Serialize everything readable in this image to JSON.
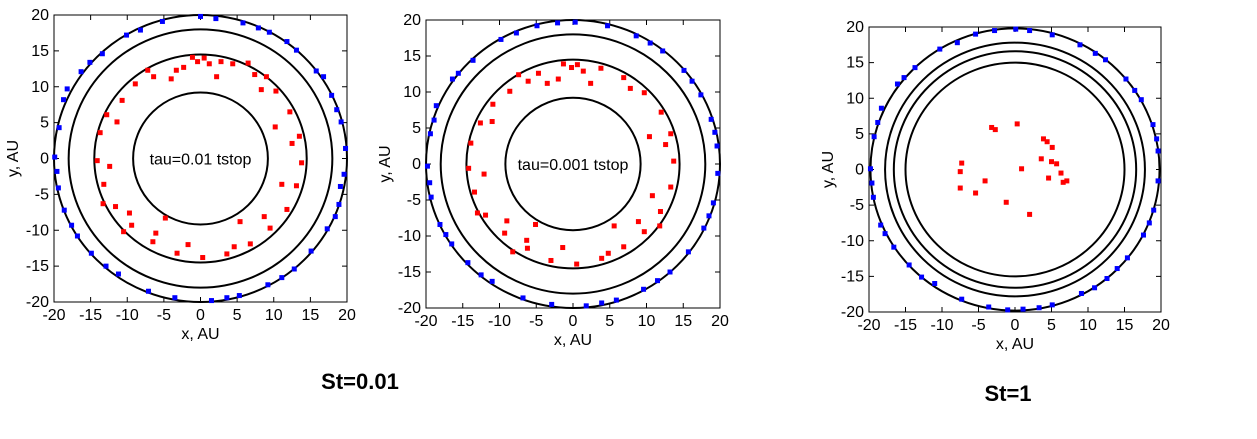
{
  "figure": {
    "captions": [
      "St=0.01",
      "St=1"
    ]
  },
  "colors": {
    "gas_particles": "#0000ff",
    "dust_particles": "#ff0000",
    "rings": "#000000"
  },
  "chart_data": [
    {
      "type": "scatter",
      "title": "",
      "annotation": "tau=0.01 tstop",
      "xlabel": "x, AU",
      "ylabel": "y, AU",
      "xlim": [
        -20,
        20
      ],
      "ylim": [
        -20,
        20
      ],
      "xticks": [
        -20,
        -15,
        -10,
        -5,
        0,
        5,
        10,
        15,
        20
      ],
      "yticks": [
        -20,
        -15,
        -10,
        -5,
        0,
        5,
        10,
        15,
        20
      ],
      "circles_radius": [
        9.2,
        14.5,
        18,
        20
      ],
      "series": [
        {
          "color": "blue",
          "points": [
            [
              0.0,
              19.8
            ],
            [
              -5.2,
              19.1
            ],
            [
              -10.1,
              17.2
            ],
            [
              -13.4,
              14.6
            ],
            [
              -16.3,
              12.1
            ],
            [
              -18.7,
              8.2
            ],
            [
              -19.3,
              4.3
            ],
            [
              -19.9,
              0.2
            ],
            [
              -19.4,
              -4.1
            ],
            [
              -18.6,
              -7.2
            ],
            [
              -16.8,
              -10.8
            ],
            [
              -14.9,
              -13.2
            ],
            [
              -11.2,
              -16.1
            ],
            [
              -7.1,
              -18.5
            ],
            [
              -3.5,
              -19.4
            ],
            [
              1.5,
              -19.8
            ],
            [
              5.3,
              -19.1
            ],
            [
              9.2,
              -17.6
            ],
            [
              12.8,
              -15.4
            ],
            [
              15.1,
              -12.9
            ],
            [
              17.3,
              -9.8
            ],
            [
              18.9,
              -6.4
            ],
            [
              19.6,
              -2.2
            ],
            [
              19.8,
              1.4
            ],
            [
              19.2,
              5.1
            ],
            [
              17.9,
              8.8
            ],
            [
              15.8,
              12.2
            ],
            [
              13.1,
              15.1
            ],
            [
              9.4,
              17.6
            ],
            [
              5.8,
              18.9
            ],
            [
              2.1,
              19.5
            ],
            [
              -8.2,
              17.9
            ],
            [
              -15.1,
              13.4
            ],
            [
              -18.2,
              9.7
            ],
            [
              -19.6,
              -1.8
            ],
            [
              -17.6,
              -9.3
            ],
            [
              -12.9,
              -15.0
            ],
            [
              3.6,
              -19.4
            ],
            [
              11.1,
              -16.6
            ],
            [
              18.4,
              -8.1
            ],
            [
              19.1,
              -3.9
            ],
            [
              18.6,
              6.8
            ],
            [
              16.8,
              11.4
            ],
            [
              11.8,
              16.3
            ],
            [
              7.9,
              18.2
            ]
          ]
        },
        {
          "color": "red",
          "points": [
            [
              -1.1,
              14.1
            ],
            [
              -0.4,
              13.5
            ],
            [
              0.5,
              14.0
            ],
            [
              1.2,
              13.2
            ],
            [
              2.8,
              13.5
            ],
            [
              -3.3,
              12.3
            ],
            [
              -6.4,
              11.4
            ],
            [
              -8.9,
              10.4
            ],
            [
              -10.7,
              8.1
            ],
            [
              -12.8,
              6.1
            ],
            [
              -13.7,
              3.6
            ],
            [
              -14.1,
              -0.3
            ],
            [
              -13.2,
              -3.6
            ],
            [
              -11.6,
              -6.7
            ],
            [
              -9.4,
              -9.3
            ],
            [
              -6.5,
              -11.6
            ],
            [
              -3.2,
              -13.2
            ],
            [
              0.3,
              -13.8
            ],
            [
              3.6,
              -13.3
            ],
            [
              6.8,
              -11.9
            ],
            [
              9.5,
              -9.7
            ],
            [
              11.8,
              -7.1
            ],
            [
              13.1,
              -3.8
            ],
            [
              13.8,
              -0.6
            ],
            [
              13.5,
              3.1
            ],
            [
              12.2,
              6.5
            ],
            [
              10.3,
              9.4
            ],
            [
              7.4,
              11.7
            ],
            [
              4.4,
              13.2
            ],
            [
              -2.3,
              12.7
            ],
            [
              -9.7,
              -7.6
            ],
            [
              -4.8,
              -8.3
            ],
            [
              5.4,
              -8.8
            ],
            [
              8.7,
              -8.1
            ],
            [
              -12.4,
              -1.1
            ],
            [
              12.5,
              2.1
            ],
            [
              11.1,
              -3.6
            ],
            [
              -11.4,
              5.1
            ],
            [
              8.3,
              9.6
            ],
            [
              -7.2,
              12.3
            ],
            [
              2.2,
              11.4
            ],
            [
              -1.7,
              -12.0
            ],
            [
              4.6,
              -12.3
            ],
            [
              -6.1,
              -10.4
            ],
            [
              10.2,
              4.4
            ],
            [
              -13.3,
              -6.3
            ],
            [
              6.5,
              13.3
            ],
            [
              -4.0,
              11.1
            ],
            [
              9.0,
              11.4
            ],
            [
              -10.5,
              -10.2
            ]
          ]
        }
      ]
    },
    {
      "type": "scatter",
      "title": "",
      "annotation": "tau=0.001 tstop",
      "xlabel": "x, AU",
      "ylabel": "y, AU",
      "xlim": [
        -20,
        20
      ],
      "ylim": [
        -20,
        20
      ],
      "xticks": [
        -20,
        -15,
        -10,
        -5,
        0,
        5,
        10,
        15,
        20
      ],
      "yticks": [
        -20,
        -15,
        -10,
        -5,
        0,
        5,
        10,
        15,
        20
      ],
      "circles_radius": [
        9.2,
        14.5,
        18,
        20
      ],
      "series": [
        {
          "color": "blue",
          "points": [
            [
              0.3,
              19.7
            ],
            [
              -4.9,
              19.2
            ],
            [
              -9.8,
              17.3
            ],
            [
              -13.6,
              14.4
            ],
            [
              -16.4,
              11.8
            ],
            [
              -18.6,
              8.1
            ],
            [
              -19.4,
              4.2
            ],
            [
              -19.8,
              -0.3
            ],
            [
              -19.3,
              -4.6
            ],
            [
              -18.1,
              -8.4
            ],
            [
              -16.5,
              -11.1
            ],
            [
              -14.3,
              -13.7
            ],
            [
              -11.0,
              -16.3
            ],
            [
              -6.8,
              -18.6
            ],
            [
              -2.9,
              -19.5
            ],
            [
              1.8,
              -19.7
            ],
            [
              5.9,
              -18.9
            ],
            [
              9.6,
              -17.4
            ],
            [
              13.2,
              -15.0
            ],
            [
              15.7,
              -12.2
            ],
            [
              17.8,
              -8.9
            ],
            [
              19.1,
              -5.4
            ],
            [
              19.7,
              -1.3
            ],
            [
              19.6,
              2.5
            ],
            [
              18.8,
              6.2
            ],
            [
              17.4,
              9.6
            ],
            [
              15.1,
              13.0
            ],
            [
              12.2,
              15.7
            ],
            [
              8.6,
              17.8
            ],
            [
              4.7,
              19.2
            ],
            [
              -7.7,
              18.2
            ],
            [
              -15.6,
              12.6
            ],
            [
              -18.9,
              6.1
            ],
            [
              -19.5,
              -2.6
            ],
            [
              -17.3,
              -9.8
            ],
            [
              -12.5,
              -15.4
            ],
            [
              3.9,
              -19.3
            ],
            [
              11.5,
              -16.2
            ],
            [
              18.5,
              -7.2
            ],
            [
              19.3,
              4.4
            ],
            [
              16.2,
              11.5
            ],
            [
              10.5,
              16.8
            ],
            [
              -2.1,
              19.6
            ]
          ]
        },
        {
          "color": "red",
          "points": [
            [
              -1.3,
              13.9
            ],
            [
              -0.2,
              13.4
            ],
            [
              0.6,
              13.8
            ],
            [
              1.4,
              12.9
            ],
            [
              -3.5,
              11.2
            ],
            [
              -6.1,
              11.5
            ],
            [
              -8.6,
              10.1
            ],
            [
              -10.9,
              8.3
            ],
            [
              -12.6,
              5.7
            ],
            [
              -13.9,
              2.9
            ],
            [
              -14.2,
              -0.6
            ],
            [
              -13.4,
              -3.9
            ],
            [
              -11.9,
              -7.1
            ],
            [
              -9.3,
              -9.6
            ],
            [
              -6.2,
              -11.7
            ],
            [
              -3.0,
              -13.4
            ],
            [
              0.5,
              -13.9
            ],
            [
              3.9,
              -13.1
            ],
            [
              6.9,
              -11.5
            ],
            [
              9.7,
              -9.4
            ],
            [
              11.9,
              -6.6
            ],
            [
              13.3,
              -3.2
            ],
            [
              13.7,
              0.4
            ],
            [
              13.3,
              4.2
            ],
            [
              12.0,
              7.2
            ],
            [
              9.7,
              9.9
            ],
            [
              6.9,
              12.0
            ],
            [
              3.8,
              13.3
            ],
            [
              -2.0,
              11.8
            ],
            [
              -9.0,
              -7.9
            ],
            [
              -5.1,
              -8.4
            ],
            [
              5.6,
              -8.6
            ],
            [
              8.9,
              -8.0
            ],
            [
              -12.1,
              -1.4
            ],
            [
              12.6,
              2.7
            ],
            [
              10.8,
              -4.4
            ],
            [
              -11.0,
              5.9
            ],
            [
              7.8,
              10.5
            ],
            [
              -7.4,
              12.4
            ],
            [
              2.4,
              11.2
            ],
            [
              -1.4,
              -11.6
            ],
            [
              4.8,
              -12.4
            ],
            [
              -6.3,
              -10.6
            ],
            [
              10.4,
              3.8
            ],
            [
              -13.0,
              -6.8
            ],
            [
              -4.7,
              12.6
            ],
            [
              -8.2,
              -12.2
            ],
            [
              11.8,
              -8.6
            ]
          ]
        }
      ]
    },
    {
      "type": "scatter",
      "title": "",
      "xlabel": "x, AU",
      "ylabel": "y, AU",
      "xlim": [
        -20,
        20
      ],
      "ylim": [
        -20,
        20
      ],
      "xticks": [
        -20,
        -15,
        -10,
        -5,
        0,
        5,
        10,
        15,
        20
      ],
      "yticks": [
        -20,
        -15,
        -10,
        -5,
        0,
        5,
        10,
        15,
        20
      ],
      "circles_radius": [
        15,
        16.6,
        17.8,
        19.8
      ],
      "series": [
        {
          "color": "blue",
          "points": [
            [
              0.1,
              19.7
            ],
            [
              -5.4,
              19.0
            ],
            [
              -10.3,
              16.9
            ],
            [
              -13.7,
              14.3
            ],
            [
              -16.1,
              12.0
            ],
            [
              -18.3,
              8.6
            ],
            [
              -19.3,
              4.6
            ],
            [
              -19.8,
              0.1
            ],
            [
              -19.4,
              -3.9
            ],
            [
              -18.4,
              -7.8
            ],
            [
              -16.6,
              -10.9
            ],
            [
              -14.5,
              -13.4
            ],
            [
              -11.0,
              -16.0
            ],
            [
              -7.3,
              -18.2
            ],
            [
              -3.6,
              -19.3
            ],
            [
              1.1,
              -19.6
            ],
            [
              5.1,
              -19.0
            ],
            [
              9.1,
              -17.4
            ],
            [
              12.6,
              -15.3
            ],
            [
              15.4,
              -12.4
            ],
            [
              17.6,
              -9.2
            ],
            [
              19.0,
              -5.7
            ],
            [
              19.6,
              -1.6
            ],
            [
              19.6,
              2.6
            ],
            [
              18.9,
              6.3
            ],
            [
              17.3,
              9.8
            ],
            [
              15.2,
              12.7
            ],
            [
              12.4,
              15.4
            ],
            [
              8.9,
              17.5
            ],
            [
              5.1,
              18.9
            ],
            [
              2.0,
              19.5
            ],
            [
              -7.9,
              17.8
            ],
            [
              -15.2,
              12.9
            ],
            [
              -18.8,
              6.6
            ],
            [
              -19.6,
              -1.9
            ],
            [
              -17.8,
              -9.0
            ],
            [
              -12.8,
              -15.1
            ],
            [
              -1.0,
              -19.7
            ],
            [
              3.3,
              -19.4
            ],
            [
              10.9,
              -16.6
            ],
            [
              18.4,
              -7.5
            ],
            [
              19.4,
              4.3
            ],
            [
              16.4,
              11.1
            ],
            [
              11.0,
              16.3
            ],
            [
              -2.8,
              19.5
            ],
            [
              14.0,
              -13.9
            ]
          ]
        },
        {
          "color": "red",
          "points": [
            [
              -3.2,
              5.9
            ],
            [
              -2.7,
              5.6
            ],
            [
              0.3,
              6.4
            ],
            [
              3.9,
              4.3
            ],
            [
              4.4,
              3.9
            ],
            [
              5.1,
              3.1
            ],
            [
              -7.3,
              0.9
            ],
            [
              -7.5,
              -0.3
            ],
            [
              -4.1,
              -1.6
            ],
            [
              3.6,
              1.5
            ],
            [
              5.0,
              1.1
            ],
            [
              5.7,
              0.8
            ],
            [
              6.3,
              -0.5
            ],
            [
              6.6,
              -1.8
            ],
            [
              4.6,
              -1.2
            ],
            [
              7.1,
              -1.6
            ],
            [
              -5.4,
              -3.3
            ],
            [
              -7.5,
              -2.6
            ],
            [
              -1.2,
              -4.6
            ],
            [
              2.0,
              -6.3
            ],
            [
              0.9,
              0.1
            ]
          ]
        }
      ]
    }
  ]
}
